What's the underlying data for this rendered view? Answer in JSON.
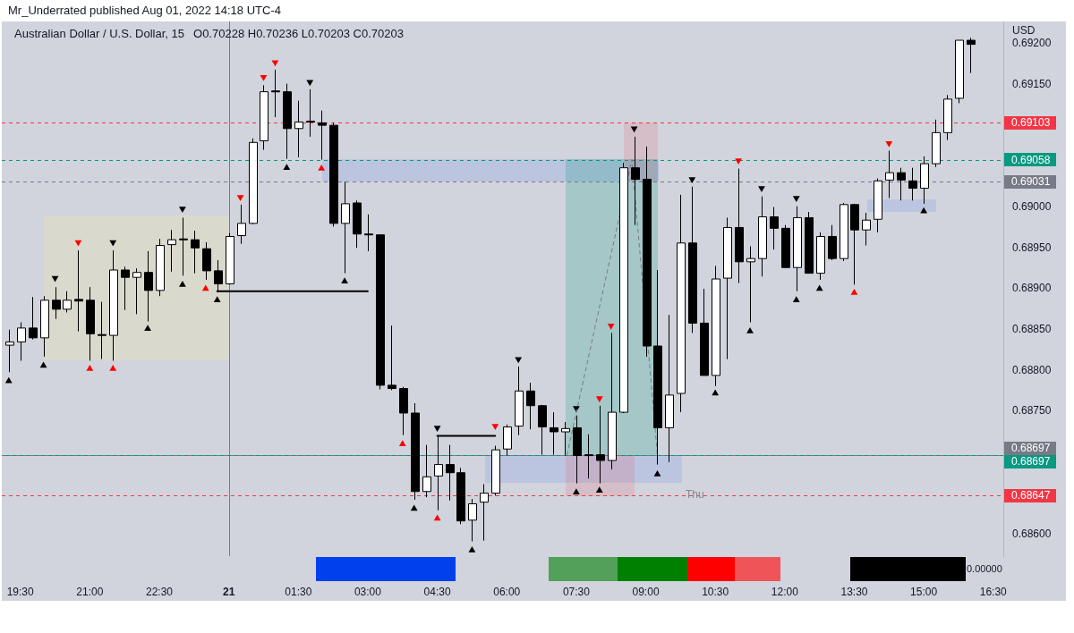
{
  "chart_data": {
    "type": "candlestick",
    "title": "Australian Dollar / U.S. Dollar, 15",
    "subtitle": "O0.70228 H0.70236 L0.70203 C0.70203",
    "ylabel": "USD",
    "annotations": [
      "Mr_Underrated published Aug 01, 2022 14:18 UTC-4",
      "Thu",
      "0.00000"
    ],
    "x": [
      "2022-07-20T19:15",
      "2022-07-20T19:30",
      "2022-07-20T19:45",
      "2022-07-20T20:00",
      "2022-07-20T20:15",
      "2022-07-20T20:30",
      "2022-07-20T20:45",
      "2022-07-20T21:00",
      "2022-07-20T21:15",
      "2022-07-20T21:30",
      "2022-07-20T21:45",
      "2022-07-20T22:00",
      "2022-07-20T22:15",
      "2022-07-20T22:30",
      "2022-07-20T22:45",
      "2022-07-20T23:00",
      "2022-07-20T23:15",
      "2022-07-20T23:30",
      "2022-07-20T23:45",
      "2022-07-21T00:00",
      "2022-07-21T00:15",
      "2022-07-21T00:30",
      "2022-07-21T00:45",
      "2022-07-21T01:00",
      "2022-07-21T01:15",
      "2022-07-21T01:30",
      "2022-07-21T01:45",
      "2022-07-21T02:00",
      "2022-07-21T02:15",
      "2022-07-21T02:30",
      "2022-07-21T02:45",
      "2022-07-21T03:00",
      "2022-07-21T03:15",
      "2022-07-21T03:30",
      "2022-07-21T03:45",
      "2022-07-21T04:00",
      "2022-07-21T04:15",
      "2022-07-21T04:30",
      "2022-07-21T04:45",
      "2022-07-21T05:00",
      "2022-07-21T05:15",
      "2022-07-21T05:30",
      "2022-07-21T05:45",
      "2022-07-21T06:00",
      "2022-07-21T06:15",
      "2022-07-21T06:30",
      "2022-07-21T06:45",
      "2022-07-21T07:00",
      "2022-07-21T07:15",
      "2022-07-21T07:30",
      "2022-07-21T07:45",
      "2022-07-21T08:00",
      "2022-07-21T08:15",
      "2022-07-21T08:30",
      "2022-07-21T08:45",
      "2022-07-21T09:00",
      "2022-07-21T09:15",
      "2022-07-21T09:30",
      "2022-07-21T09:45",
      "2022-07-21T10:00",
      "2022-07-21T10:15",
      "2022-07-21T10:30",
      "2022-07-21T10:45",
      "2022-07-21T11:00",
      "2022-07-21T11:15",
      "2022-07-21T11:30",
      "2022-07-21T11:45",
      "2022-07-21T12:00",
      "2022-07-21T12:15",
      "2022-07-21T12:30",
      "2022-07-21T12:45",
      "2022-07-21T13:00",
      "2022-07-21T13:15",
      "2022-07-21T13:30",
      "2022-07-21T13:45",
      "2022-07-21T14:00",
      "2022-07-21T14:15",
      "2022-07-21T14:30",
      "2022-07-21T14:45",
      "2022-07-21T15:00",
      "2022-07-21T15:15",
      "2022-07-21T15:30",
      "2022-07-21T15:45",
      "2022-07-21T16:00"
    ],
    "ohlc": [
      [
        0.68831,
        0.6885,
        0.68798,
        0.68835
      ],
      [
        0.68835,
        0.68859,
        0.68812,
        0.68852
      ],
      [
        0.68852,
        0.6889,
        0.68838,
        0.6884
      ],
      [
        0.6884,
        0.68891,
        0.68817,
        0.68886
      ],
      [
        0.68886,
        0.68902,
        0.68863,
        0.68875
      ],
      [
        0.68875,
        0.68897,
        0.68871,
        0.68886
      ],
      [
        0.68887,
        0.68947,
        0.68848,
        0.68885
      ],
      [
        0.68886,
        0.68902,
        0.68812,
        0.68845
      ],
      [
        0.68844,
        0.68884,
        0.68814,
        0.68843
      ],
      [
        0.68843,
        0.68947,
        0.68812,
        0.68923
      ],
      [
        0.68923,
        0.68927,
        0.68874,
        0.68914
      ],
      [
        0.68914,
        0.68925,
        0.68869,
        0.6892
      ],
      [
        0.6892,
        0.68946,
        0.6886,
        0.68898
      ],
      [
        0.68898,
        0.68961,
        0.68891,
        0.68953
      ],
      [
        0.68954,
        0.68972,
        0.68921,
        0.6896
      ],
      [
        0.68961,
        0.68987,
        0.68916,
        0.6896
      ],
      [
        0.6896,
        0.68971,
        0.68919,
        0.6895
      ],
      [
        0.68949,
        0.68957,
        0.68911,
        0.68922
      ],
      [
        0.68922,
        0.68935,
        0.68896,
        0.68906
      ],
      [
        0.68906,
        0.68968,
        0.68905,
        0.68964
      ],
      [
        0.68965,
        0.69003,
        0.68955,
        0.6898
      ],
      [
        0.6898,
        0.69084,
        0.68979,
        0.69079
      ],
      [
        0.69081,
        0.69149,
        0.6907,
        0.69141
      ],
      [
        0.69142,
        0.69168,
        0.6911,
        0.69141
      ],
      [
        0.69141,
        0.69151,
        0.69059,
        0.69096
      ],
      [
        0.69096,
        0.6913,
        0.69061,
        0.69104
      ],
      [
        0.69105,
        0.69144,
        0.69086,
        0.69104
      ],
      [
        0.69103,
        0.69118,
        0.69058,
        0.691
      ],
      [
        0.691,
        0.69103,
        0.68976,
        0.6898
      ],
      [
        0.6898,
        0.69031,
        0.68919,
        0.69004
      ],
      [
        0.69005,
        0.69008,
        0.6895,
        0.68967
      ],
      [
        0.68967,
        0.68991,
        0.68946,
        0.68966
      ],
      [
        0.68966,
        0.68966,
        0.68777,
        0.68782
      ],
      [
        0.68782,
        0.68855,
        0.68776,
        0.68778
      ],
      [
        0.68778,
        0.6878,
        0.68721,
        0.68748
      ],
      [
        0.68748,
        0.6876,
        0.68642,
        0.68652
      ],
      [
        0.68652,
        0.68709,
        0.68645,
        0.6867
      ],
      [
        0.68671,
        0.6872,
        0.68629,
        0.68685
      ],
      [
        0.68685,
        0.68709,
        0.68641,
        0.68675
      ],
      [
        0.68675,
        0.68681,
        0.68612,
        0.68616
      ],
      [
        0.68617,
        0.68643,
        0.68591,
        0.68637
      ],
      [
        0.68639,
        0.68661,
        0.68592,
        0.6865
      ],
      [
        0.6865,
        0.68708,
        0.68647,
        0.68703
      ],
      [
        0.68704,
        0.68734,
        0.68696,
        0.68731
      ],
      [
        0.68732,
        0.68805,
        0.68721,
        0.68775
      ],
      [
        0.68775,
        0.68785,
        0.68728,
        0.68757
      ],
      [
        0.68757,
        0.68758,
        0.68697,
        0.68731
      ],
      [
        0.6873,
        0.68749,
        0.68697,
        0.68725
      ],
      [
        0.68725,
        0.68737,
        0.68696,
        0.68729
      ],
      [
        0.6873,
        0.68745,
        0.68662,
        0.68696
      ],
      [
        0.68697,
        0.68722,
        0.68668,
        0.68696
      ],
      [
        0.68697,
        0.68757,
        0.68662,
        0.6869
      ],
      [
        0.6869,
        0.68846,
        0.68679,
        0.68749
      ],
      [
        0.68749,
        0.69054,
        0.68748,
        0.69048
      ],
      [
        0.69048,
        0.69086,
        0.68978,
        0.69034
      ],
      [
        0.69034,
        0.69074,
        0.68817,
        0.6883
      ],
      [
        0.6883,
        0.68923,
        0.68685,
        0.6873
      ],
      [
        0.6873,
        0.68868,
        0.68688,
        0.6877
      ],
      [
        0.68772,
        0.69015,
        0.68749,
        0.68956
      ],
      [
        0.68956,
        0.69025,
        0.68846,
        0.68858
      ],
      [
        0.68858,
        0.689,
        0.68794,
        0.68794
      ],
      [
        0.68794,
        0.68928,
        0.68781,
        0.68912
      ],
      [
        0.68913,
        0.68987,
        0.68814,
        0.68975
      ],
      [
        0.68975,
        0.69047,
        0.68907,
        0.68933
      ],
      [
        0.68933,
        0.68952,
        0.68859,
        0.68937
      ],
      [
        0.68937,
        0.69013,
        0.68915,
        0.68988
      ],
      [
        0.68988,
        0.69,
        0.68948,
        0.68974
      ],
      [
        0.68974,
        0.68978,
        0.68926,
        0.68926
      ],
      [
        0.68926,
        0.69001,
        0.68897,
        0.68987
      ],
      [
        0.68987,
        0.68994,
        0.68919,
        0.68919
      ],
      [
        0.68919,
        0.68969,
        0.68911,
        0.68964
      ],
      [
        0.68964,
        0.68978,
        0.68935,
        0.68937
      ],
      [
        0.68937,
        0.69005,
        0.68934,
        0.69003
      ],
      [
        0.69003,
        0.69004,
        0.68905,
        0.68972
      ],
      [
        0.68972,
        0.68993,
        0.68953,
        0.68984
      ],
      [
        0.68985,
        0.69035,
        0.68969,
        0.69032
      ],
      [
        0.69033,
        0.69069,
        0.69011,
        0.69042
      ],
      [
        0.69042,
        0.69048,
        0.69008,
        0.69033
      ],
      [
        0.69032,
        0.69048,
        0.69008,
        0.69023
      ],
      [
        0.69023,
        0.69062,
        0.69004,
        0.69053
      ],
      [
        0.69053,
        0.69107,
        0.69049,
        0.69091
      ],
      [
        0.69091,
        0.69137,
        0.69082,
        0.69132
      ],
      [
        0.69133,
        0.69204,
        0.69127,
        0.69204
      ],
      [
        0.69204,
        0.69207,
        0.69164,
        0.69199
      ]
    ],
    "colors": [
      "#ffffff",
      "#ffffff",
      "#000000",
      "#ffffff",
      "#000000",
      "#ffffff",
      "#000000",
      "#000000",
      "#000000",
      "#ffffff",
      "#000000",
      "#ffffff",
      "#000000",
      "#ffffff",
      "#ffffff",
      "#000000",
      "#000000",
      "#000000",
      "#000000",
      "#ffffff",
      "#ffffff",
      "#ffffff",
      "#ffffff",
      "#000000",
      "#000000",
      "#ffffff",
      "#000000",
      "#000000",
      "#000000",
      "#ffffff",
      "#000000",
      "#000000",
      "#000000",
      "#000000",
      "#000000",
      "#000000",
      "#ffffff",
      "#ffffff",
      "#000000",
      "#000000",
      "#ffffff",
      "#ffffff",
      "#ffffff",
      "#ffffff",
      "#ffffff",
      "#000000",
      "#000000",
      "#000000",
      "#ffffff",
      "#000000",
      "#000000",
      "#000000",
      "#ffffff",
      "#ffffff",
      "#000000",
      "#000000",
      "#000000",
      "#ffffff",
      "#ffffff",
      "#000000",
      "#000000",
      "#ffffff",
      "#ffffff",
      "#000000",
      "#ffffff",
      "#ffffff",
      "#000000",
      "#000000",
      "#ffffff",
      "#000000",
      "#ffffff",
      "#000000",
      "#ffffff",
      "#000000",
      "#ffffff",
      "#ffffff",
      "#ffffff",
      "#000000",
      "#000000",
      "#ffffff",
      "#ffffff",
      "#ffffff",
      "#ffffff",
      "#000000"
    ],
    "series": [
      {
        "type": "line",
        "color": "#000000",
        "x": [
          "2022-07-20T23:45",
          "2022-07-21T03:00"
        ],
        "values": [
          0.68897,
          0.68897
        ]
      },
      {
        "type": "line",
        "color": "#000000",
        "x": [
          "2022-07-21T04:30",
          "2022-07-21T05:45"
        ],
        "values": [
          0.6872,
          0.6872
        ]
      },
      {
        "type": "line",
        "color": "#787b86",
        "line_style": "dashed",
        "x": [
          "2022-07-21T07:18",
          "2022-07-21T08:42",
          "2022-07-21T09:15"
        ],
        "values": [
          0.68697,
          0.69058,
          0.68697
        ]
      },
      {
        "type": "scatter",
        "marker": "triangle",
        "x": [
          "2022-07-20T19:15",
          "2022-07-20T20:00",
          "2022-07-20T21:00",
          "2022-07-20T21:30",
          "2022-07-20T22:15",
          "2022-07-20T23:00",
          "2022-07-20T23:30",
          "2022-07-20T23:45",
          "2022-07-21T01:15",
          "2022-07-21T02:00",
          "2022-07-21T02:30",
          "2022-07-21T03:45",
          "2022-07-21T04:00",
          "2022-07-21T04:30",
          "2022-07-21T05:15",
          "2022-07-21T07:30",
          "2022-07-21T08:00",
          "2022-07-21T09:15",
          "2022-07-21T10:30",
          "2022-07-21T11:15",
          "2022-07-21T12:15",
          "2022-07-21T12:45",
          "2022-07-21T13:30",
          "2022-07-21T15:00"
        ],
        "values": [
          0.68787,
          0.68806,
          0.68802,
          0.68802,
          0.68851,
          0.68905,
          0.689,
          0.68886,
          0.69048,
          0.69047,
          0.68909,
          0.6871,
          0.68631,
          0.68619,
          0.6858,
          0.68651,
          0.68653,
          0.68673,
          0.68772,
          0.68848,
          0.68886,
          0.689,
          0.68895,
          0.68995
        ],
        "colors": [
          "#000000",
          "#000000",
          "#ff0000",
          "#ff0000",
          "#000000",
          "#000000",
          "#ff0000",
          "#000000",
          "#000000",
          "#ff0000",
          "#000000",
          "#ff0000",
          "#000000",
          "#ff0000",
          "#000000",
          "#000000",
          "#000000",
          "#000000",
          "#000000",
          "#000000",
          "#000000",
          "#000000",
          "#ff0000",
          "#000000"
        ]
      },
      {
        "type": "scatter",
        "marker": "triangle",
        "x": [
          "2022-07-20T20:15",
          "2022-07-20T20:45",
          "2022-07-20T21:30",
          "2022-07-20T23:00",
          "2022-07-21T00:15",
          "2022-07-21T00:45",
          "2022-07-21T01:00",
          "2022-07-21T01:45",
          "2022-07-21T04:30",
          "2022-07-21T05:45",
          "2022-07-21T06:15",
          "2022-07-21T07:30",
          "2022-07-21T08:00",
          "2022-07-21T08:15",
          "2022-07-21T08:45",
          "2022-07-21T10:00",
          "2022-07-21T11:00",
          "2022-07-21T11:30",
          "2022-07-21T12:15",
          "2022-07-21T14:15"
        ],
        "values": [
          0.68913,
          0.68957,
          0.68957,
          0.68998,
          0.69012,
          0.69159,
          0.69177,
          0.69153,
          0.6873,
          0.68732,
          0.68814,
          0.68754,
          0.68766,
          0.68855,
          0.69096,
          0.69034,
          0.69057,
          0.69023,
          0.69011,
          0.69078
        ],
        "colors": [
          "#000000",
          "#ff0000",
          "#000000",
          "#000000",
          "#ff0000",
          "#ff0000",
          "#ff0000",
          "#000000",
          "#000000",
          "#ff0000",
          "#000000",
          "#000000",
          "#ff0000",
          "#ff0000",
          "#000000",
          "#000000",
          "#ff0000",
          "#000000",
          "#000000",
          "#ff0000"
        ]
      }
    ],
    "xlim": [
      "2022-07-20T19:06",
      "2022-07-21T16:43"
    ],
    "ylim": [
      0.68573,
      0.69227
    ],
    "xticks": [
      {
        "value": "2022-07-20T19:30",
        "label": "19:30"
      },
      {
        "value": "2022-07-20T21:00",
        "label": "21:00"
      },
      {
        "value": "2022-07-20T22:30",
        "label": "22:30"
      },
      {
        "value": "2022-07-21T00:00",
        "label": "21"
      },
      {
        "value": "2022-07-21T01:30",
        "label": "01:30"
      },
      {
        "value": "2022-07-21T03:00",
        "label": "03:00"
      },
      {
        "value": "2022-07-21T04:30",
        "label": "04:30"
      },
      {
        "value": "2022-07-21T06:00",
        "label": "06:00"
      },
      {
        "value": "2022-07-21T07:30",
        "label": "07:30"
      },
      {
        "value": "2022-07-21T09:00",
        "label": "09:00"
      },
      {
        "value": "2022-07-21T10:30",
        "label": "10:30"
      },
      {
        "value": "2022-07-21T12:00",
        "label": "12:00"
      },
      {
        "value": "2022-07-21T13:30",
        "label": "13:30"
      },
      {
        "value": "2022-07-21T15:00",
        "label": "15:00"
      },
      {
        "value": "2022-07-21T16:30",
        "label": "16:30"
      }
    ],
    "yticks": [
      {
        "value": 0.686,
        "label": "0.68600"
      },
      {
        "value": 0.6875,
        "label": "0.68750"
      },
      {
        "value": 0.688,
        "label": "0.68800"
      },
      {
        "value": 0.6885,
        "label": "0.68850"
      },
      {
        "value": 0.689,
        "label": "0.68900"
      },
      {
        "value": 0.6895,
        "label": "0.68950"
      },
      {
        "value": 0.69,
        "label": "0.69000"
      },
      {
        "value": 0.6915,
        "label": "0.69150"
      },
      {
        "value": 0.692,
        "label": "0.69200"
      }
    ],
    "ref_lines": [
      {
        "axis": "x",
        "value": "2022-07-21T00:00",
        "color": "#787b86"
      },
      {
        "axis": "y",
        "value": 0.69103,
        "label": "0.69103",
        "color": "#f23645",
        "line_style": "dashed"
      },
      {
        "axis": "y",
        "value": 0.69058,
        "label": "0.69058",
        "color": "#089981",
        "line_style": "dashed"
      },
      {
        "axis": "y",
        "value": 0.69031,
        "label": "0.69031",
        "color": "#787b86",
        "line_style": "dashed"
      },
      {
        "axis": "y",
        "value": 0.68697,
        "label": "0.68697",
        "color": "#787b86",
        "line_style": "dashed"
      },
      {
        "axis": "y",
        "value": 0.68697,
        "label": "0.68697",
        "color": "#089981",
        "line_style": "dashed"
      },
      {
        "axis": "y",
        "value": 0.68647,
        "label": "0.68647",
        "color": "#f23645",
        "line_style": "dashed"
      }
    ],
    "grid": false,
    "legend": false
  }
}
